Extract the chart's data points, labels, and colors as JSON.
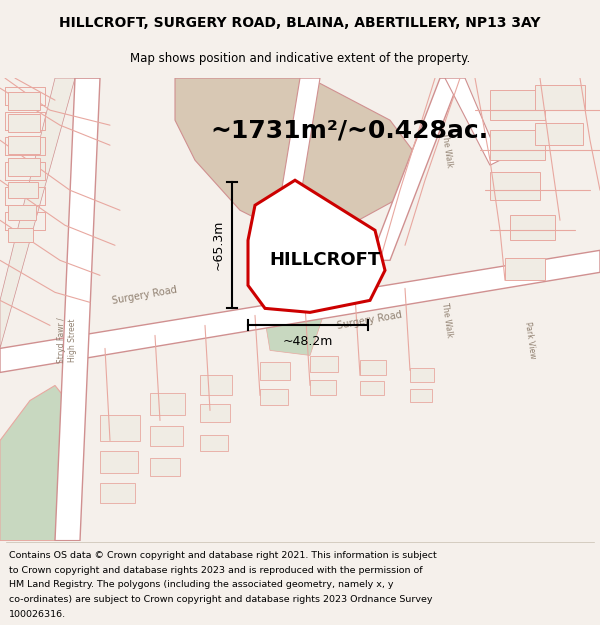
{
  "title_line1": "HILLCROFT, SURGERY ROAD, BLAINA, ABERTILLERY, NP13 3AY",
  "title_line2": "Map shows position and indicative extent of the property.",
  "area_text": "~1731m²/~0.428ac.",
  "property_label": "HILLCROFT",
  "dim1_label": "~65.3m",
  "dim2_label": "~48.2m",
  "footer_lines": [
    "Contains OS data © Crown copyright and database right 2021. This information is subject",
    "to Crown copyright and database rights 2023 and is reproduced with the permission of",
    "HM Land Registry. The polygons (including the associated geometry, namely x, y",
    "co-ordinates) are subject to Crown copyright and database rights 2023 Ordnance Survey",
    "100026316."
  ],
  "bg_color": "#f5f0eb",
  "map_bg": "#f0ece4",
  "title_fontsize": 10,
  "subtitle_fontsize": 8.5,
  "area_fontsize": 18,
  "prop_label_fontsize": 13,
  "dim_fontsize": 9,
  "footer_fontsize": 6.8,
  "fig_width": 6.0,
  "fig_height": 6.25
}
